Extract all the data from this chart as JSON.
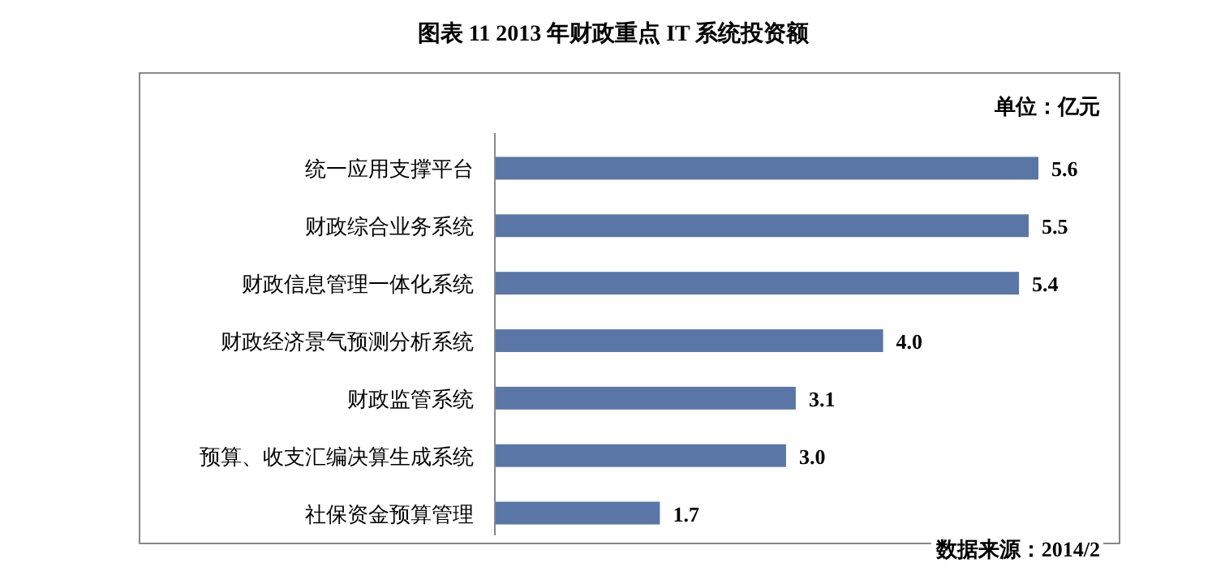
{
  "chart_data": {
    "type": "bar",
    "orientation": "horizontal",
    "title": "图表 11 2013 年财政重点 IT 系统投资额",
    "categories": [
      "统一应用支撑平台",
      "财政综合业务系统",
      "财政信息管理一体化系统",
      "财政经济景气预测分析系统",
      "财政监管系统",
      "预算、收支汇编决算生成系统",
      "社保资金预算管理"
    ],
    "values": [
      5.6,
      5.5,
      5.4,
      4.0,
      3.1,
      3.0,
      1.7
    ],
    "value_labels": [
      "5.6",
      "5.5",
      "5.4",
      "4.0",
      "3.1",
      "3.0",
      "1.7"
    ],
    "color": "#5a76a6",
    "annotations": [
      "单位：亿元",
      "数据来源：2014/2"
    ]
  }
}
